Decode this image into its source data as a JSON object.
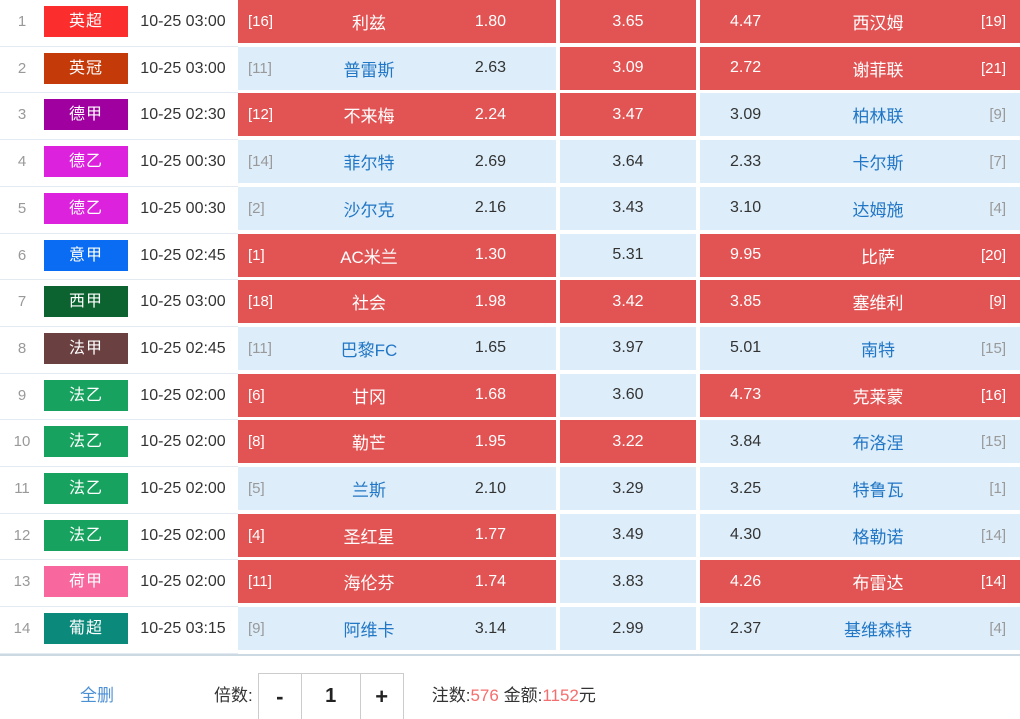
{
  "colors": {
    "selected_cell": "#e25353",
    "unselected_cell": "#ddeefa",
    "team_link_blue": "#2176c5",
    "footer_number_red": "#f56e6e",
    "delete_link_blue": "#4b8fd4"
  },
  "table": {
    "rows": [
      {
        "no": "1",
        "league": "英超",
        "league_color": "#fb2d2d",
        "time": "10-25 03:00",
        "home": {
          "rank": "[16]",
          "team": "利兹",
          "odds": "1.80",
          "selected": true
        },
        "draw": {
          "odds": "3.65",
          "selected": true
        },
        "away": {
          "odds": "4.47",
          "team": "西汉姆",
          "rank": "[19]",
          "selected": true
        }
      },
      {
        "no": "2",
        "league": "英冠",
        "league_color": "#c43a08",
        "time": "10-25 03:00",
        "home": {
          "rank": "[11]",
          "team": "普雷斯",
          "odds": "2.63",
          "selected": false
        },
        "draw": {
          "odds": "3.09",
          "selected": true
        },
        "away": {
          "odds": "2.72",
          "team": "谢菲联",
          "rank": "[21]",
          "selected": true
        }
      },
      {
        "no": "3",
        "league": "德甲",
        "league_color": "#a000a0",
        "time": "10-25 02:30",
        "home": {
          "rank": "[12]",
          "team": "不来梅",
          "odds": "2.24",
          "selected": true
        },
        "draw": {
          "odds": "3.47",
          "selected": true
        },
        "away": {
          "odds": "3.09",
          "team": "柏林联",
          "rank": "[9]",
          "selected": false
        }
      },
      {
        "no": "4",
        "league": "德乙",
        "league_color": "#dd22dd",
        "time": "10-25 00:30",
        "home": {
          "rank": "[14]",
          "team": "菲尔特",
          "odds": "2.69",
          "selected": false
        },
        "draw": {
          "odds": "3.64",
          "selected": false
        },
        "away": {
          "odds": "2.33",
          "team": "卡尔斯",
          "rank": "[7]",
          "selected": false
        }
      },
      {
        "no": "5",
        "league": "德乙",
        "league_color": "#dd22dd",
        "time": "10-25 00:30",
        "home": {
          "rank": "[2]",
          "team": "沙尔克",
          "odds": "2.16",
          "selected": false
        },
        "draw": {
          "odds": "3.43",
          "selected": false
        },
        "away": {
          "odds": "3.10",
          "team": "达姆施",
          "rank": "[4]",
          "selected": false
        }
      },
      {
        "no": "6",
        "league": "意甲",
        "league_color": "#0a6cf2",
        "time": "10-25 02:45",
        "home": {
          "rank": "[1]",
          "team": "AC米兰",
          "odds": "1.30",
          "selected": true
        },
        "draw": {
          "odds": "5.31",
          "selected": false
        },
        "away": {
          "odds": "9.95",
          "team": "比萨",
          "rank": "[20]",
          "selected": true
        }
      },
      {
        "no": "7",
        "league": "西甲",
        "league_color": "#0d6330",
        "time": "10-25 03:00",
        "home": {
          "rank": "[18]",
          "team": "社会",
          "odds": "1.98",
          "selected": true
        },
        "draw": {
          "odds": "3.42",
          "selected": true
        },
        "away": {
          "odds": "3.85",
          "team": "塞维利",
          "rank": "[9]",
          "selected": true
        }
      },
      {
        "no": "8",
        "league": "法甲",
        "league_color": "#6b4040",
        "time": "10-25 02:45",
        "home": {
          "rank": "[11]",
          "team": "巴黎FC",
          "odds": "1.65",
          "selected": false
        },
        "draw": {
          "odds": "3.97",
          "selected": false
        },
        "away": {
          "odds": "5.01",
          "team": "南特",
          "rank": "[15]",
          "selected": false
        }
      },
      {
        "no": "9",
        "league": "法乙",
        "league_color": "#17a35f",
        "time": "10-25 02:00",
        "home": {
          "rank": "[6]",
          "team": "甘冈",
          "odds": "1.68",
          "selected": true
        },
        "draw": {
          "odds": "3.60",
          "selected": false
        },
        "away": {
          "odds": "4.73",
          "team": "克莱蒙",
          "rank": "[16]",
          "selected": true
        }
      },
      {
        "no": "10",
        "league": "法乙",
        "league_color": "#17a35f",
        "time": "10-25 02:00",
        "home": {
          "rank": "[8]",
          "team": "勒芒",
          "odds": "1.95",
          "selected": true
        },
        "draw": {
          "odds": "3.22",
          "selected": true
        },
        "away": {
          "odds": "3.84",
          "team": "布洛涅",
          "rank": "[15]",
          "selected": false
        }
      },
      {
        "no": "11",
        "league": "法乙",
        "league_color": "#17a35f",
        "time": "10-25 02:00",
        "home": {
          "rank": "[5]",
          "team": "兰斯",
          "odds": "2.10",
          "selected": false
        },
        "draw": {
          "odds": "3.29",
          "selected": false
        },
        "away": {
          "odds": "3.25",
          "team": "特鲁瓦",
          "rank": "[1]",
          "selected": false
        }
      },
      {
        "no": "12",
        "league": "法乙",
        "league_color": "#17a35f",
        "time": "10-25 02:00",
        "home": {
          "rank": "[4]",
          "team": "圣红星",
          "odds": "1.77",
          "selected": true
        },
        "draw": {
          "odds": "3.49",
          "selected": false
        },
        "away": {
          "odds": "4.30",
          "team": "格勒诺",
          "rank": "[14]",
          "selected": false
        }
      },
      {
        "no": "13",
        "league": "荷甲",
        "league_color": "#f8689e",
        "time": "10-25 02:00",
        "home": {
          "rank": "[11]",
          "team": "海伦芬",
          "odds": "1.74",
          "selected": true
        },
        "draw": {
          "odds": "3.83",
          "selected": false
        },
        "away": {
          "odds": "4.26",
          "team": "布雷达",
          "rank": "[14]",
          "selected": true
        }
      },
      {
        "no": "14",
        "league": "葡超",
        "league_color": "#0b897b",
        "time": "10-25 03:15",
        "home": {
          "rank": "[9]",
          "team": "阿维卡",
          "odds": "3.14",
          "selected": false
        },
        "draw": {
          "odds": "2.99",
          "selected": false
        },
        "away": {
          "odds": "2.37",
          "team": "基维森特",
          "rank": "[4]",
          "selected": false
        }
      }
    ]
  },
  "footer": {
    "delete_all": "全删",
    "multiplier_label": "倍数:",
    "minus": "-",
    "multiplier_value": "1",
    "plus": "+",
    "bets_label": "注数:",
    "bets_count": "576",
    "amount_label": "金额:",
    "amount_value": "1152",
    "amount_unit": "元"
  }
}
